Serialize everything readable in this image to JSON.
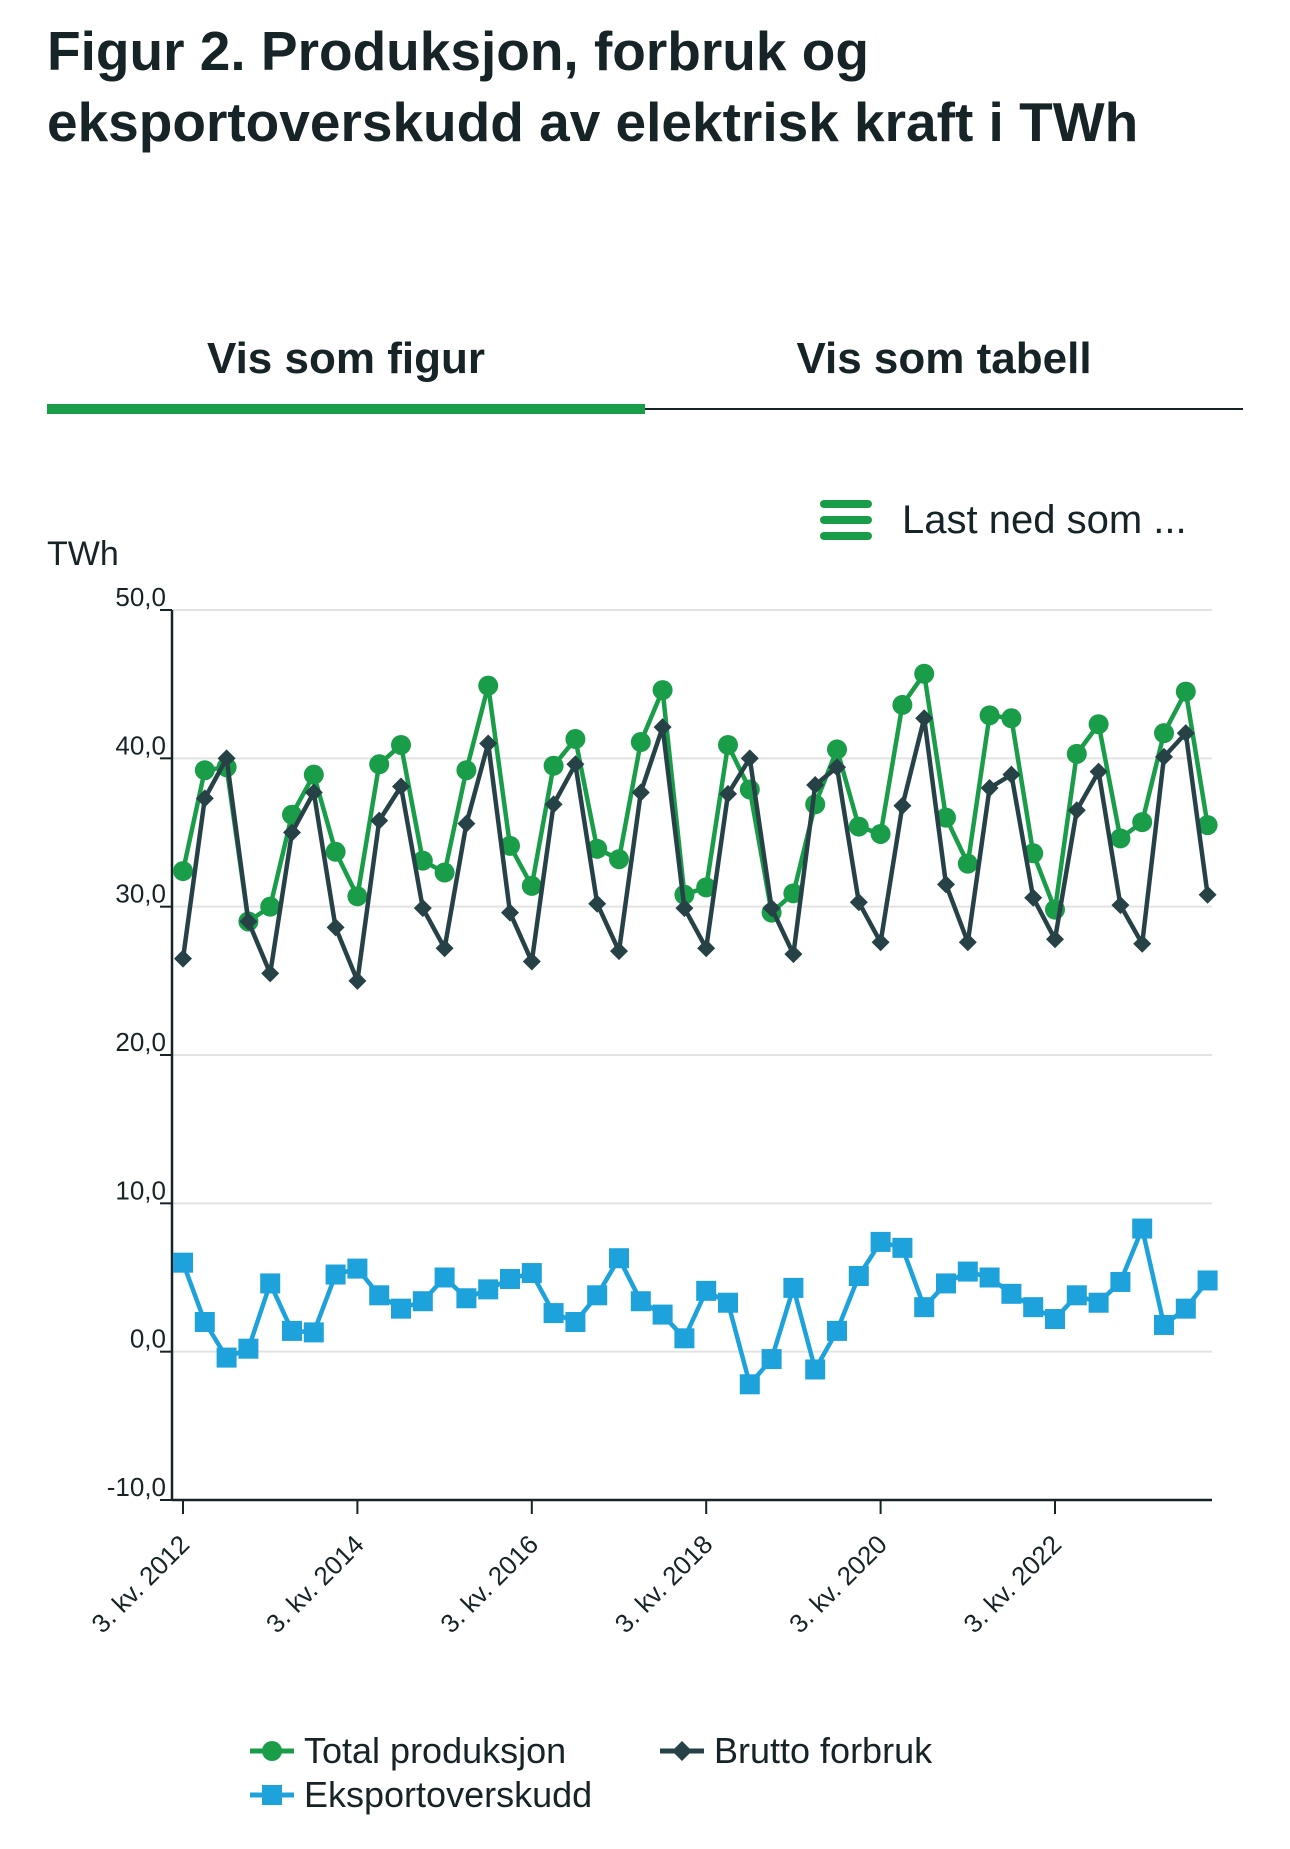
{
  "title": "Figur 2. Produksjon, forbruk og eksportoverskudd av elektrisk kraft i TWh",
  "tabs": [
    {
      "label": "Vis som figur",
      "active": true
    },
    {
      "label": "Vis som tabell",
      "active": false
    }
  ],
  "download": {
    "label": "Last ned som ...",
    "icon": "menu-icon"
  },
  "colors": {
    "production": "#1a9d49",
    "consumption": "#274247",
    "export": "#1da2dc",
    "accent": "#1a9d49"
  },
  "chart_data": {
    "type": "line",
    "yunit": "TWh",
    "ylim": [
      -10,
      50
    ],
    "yticks": [
      "50,0",
      "40,0",
      "30,0",
      "20,0",
      "10,0",
      "0,0",
      "-10,0"
    ],
    "ytick_values": [
      50,
      40,
      30,
      20,
      10,
      0,
      -10
    ],
    "xtick_labels": [
      "3. kv. 2012",
      "3. kv. 2014",
      "3. kv. 2016",
      "3. kv. 2018",
      "3. kv. 2020",
      "3. kv. 2022"
    ],
    "xtick_indices": [
      0,
      8,
      16,
      24,
      32,
      40
    ],
    "x": [
      "3. kv. 2012",
      "4. kv. 2012",
      "1. kv. 2013",
      "2. kv. 2013",
      "3. kv. 2013",
      "4. kv. 2013",
      "1. kv. 2014",
      "2. kv. 2014",
      "3. kv. 2014",
      "4. kv. 2014",
      "1. kv. 2015",
      "2. kv. 2015",
      "3. kv. 2015",
      "4. kv. 2015",
      "1. kv. 2016",
      "2. kv. 2016",
      "3. kv. 2016",
      "4. kv. 2016",
      "1. kv. 2017",
      "2. kv. 2017",
      "3. kv. 2017",
      "4. kv. 2017",
      "1. kv. 2018",
      "2. kv. 2018",
      "3. kv. 2018",
      "4. kv. 2018",
      "1. kv. 2019",
      "2. kv. 2019",
      "3. kv. 2019",
      "4. kv. 2019",
      "1. kv. 2020",
      "2. kv. 2020",
      "3. kv. 2020",
      "4. kv. 2020",
      "1. kv. 2021",
      "2. kv. 2021",
      "3. kv. 2021",
      "4. kv. 2021",
      "1. kv. 2022",
      "2. kv. 2022",
      "3. kv. 2022",
      "4. kv. 2022",
      "1. kv. 2023",
      "2. kv. 2023",
      "3. kv. 2023",
      "4. kv. 2023",
      "1. kv. 2024",
      "2. kv. 2024"
    ],
    "series": [
      {
        "name": "Total produksjon",
        "marker": "circle",
        "values": [
          32.4,
          39.2,
          39.4,
          29.0,
          30.0,
          36.2,
          38.9,
          33.7,
          30.7,
          39.6,
          40.9,
          33.1,
          32.3,
          39.2,
          44.9,
          34.1,
          31.4,
          39.5,
          41.3,
          33.9,
          33.2,
          41.1,
          44.6,
          30.8,
          31.3,
          40.9,
          37.9,
          29.6,
          30.9,
          36.9,
          40.6,
          35.4,
          34.9,
          43.6,
          45.7,
          36.0,
          32.9,
          42.9,
          42.7,
          33.6,
          29.8,
          40.3,
          42.3,
          34.6,
          35.7,
          41.7,
          44.5,
          35.5
        ]
      },
      {
        "name": "Brutto forbruk",
        "marker": "diamond",
        "values": [
          26.5,
          37.3,
          40.0,
          29.0,
          25.5,
          35.0,
          37.7,
          28.6,
          25.0,
          35.8,
          38.1,
          29.9,
          27.2,
          35.6,
          41.0,
          29.6,
          26.3,
          36.9,
          39.6,
          30.2,
          27.0,
          37.7,
          42.1,
          29.9,
          27.2,
          37.6,
          40.0,
          29.9,
          26.8,
          38.2,
          39.4,
          30.3,
          27.6,
          36.8,
          42.7,
          31.5,
          27.6,
          38.0,
          38.9,
          30.6,
          27.8,
          36.5,
          39.1,
          30.1,
          27.5,
          40.1,
          41.7,
          30.8
        ]
      },
      {
        "name": "Eksportoverskudd",
        "marker": "square",
        "values": [
          6.0,
          2.0,
          -0.4,
          0.2,
          4.6,
          1.4,
          1.3,
          5.2,
          5.6,
          3.8,
          2.9,
          3.4,
          5.0,
          3.6,
          4.2,
          4.9,
          5.3,
          2.6,
          2.0,
          3.8,
          6.3,
          3.4,
          2.5,
          0.9,
          4.1,
          3.3,
          -2.2,
          -0.5,
          4.3,
          -1.2,
          1.4,
          5.1,
          7.4,
          7.0,
          3.0,
          4.6,
          5.4,
          5.0,
          3.9,
          3.0,
          2.2,
          3.8,
          3.3,
          4.7,
          8.3,
          1.8,
          2.9,
          4.8
        ]
      }
    ]
  }
}
